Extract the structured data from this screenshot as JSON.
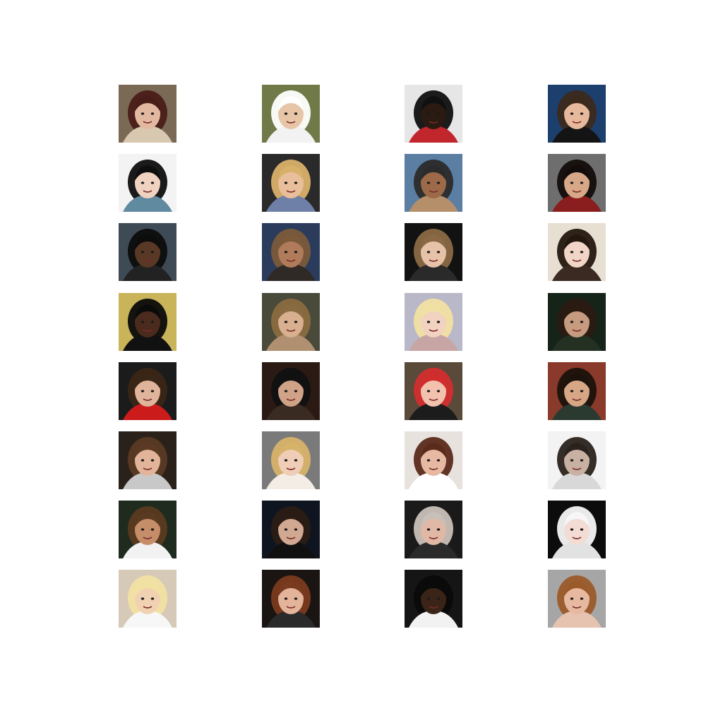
{
  "grid": {
    "rows": 8,
    "columns": 4,
    "tiles": [
      {
        "bg": "#7a6a55",
        "skin": "#e2b9a0",
        "hair": "#4a1e18",
        "top": "#d9c8b0"
      },
      {
        "bg": "#6f7a48",
        "skin": "#e7c6a8",
        "hair": "#ffffff",
        "top": "#f2f2f2"
      },
      {
        "bg": "#e6e6e6",
        "skin": "#2a1a12",
        "hair": "#101010",
        "top": "#c0262b"
      },
      {
        "bg": "#1d3f6e",
        "skin": "#e6b99c",
        "hair": "#3b2a1c",
        "top": "#141414"
      },
      {
        "bg": "#f3f3f3",
        "skin": "#f0d2c0",
        "hair": "#0e0e0e",
        "top": "#5f8aa0"
      },
      {
        "bg": "#2a2a2a",
        "skin": "#e8bf9a",
        "hair": "#d9b06a",
        "top": "#6e7fa8"
      },
      {
        "bg": "#5b7ea3",
        "skin": "#9c6a48",
        "hair": "#2b2b2b",
        "top": "#b58f6a"
      },
      {
        "bg": "#6e6e6e",
        "skin": "#d7a888",
        "hair": "#120c0a",
        "top": "#8a1d1d"
      },
      {
        "bg": "#3f4a57",
        "skin": "#5a3826",
        "hair": "#0c0c0c",
        "top": "#222222"
      },
      {
        "bg": "#2a3b5c",
        "skin": "#b07b5a",
        "hair": "#7a5a3a",
        "top": "#2f2a26"
      },
      {
        "bg": "#121212",
        "skin": "#e6c2a8",
        "hair": "#8a6a46",
        "top": "#2a2a2a"
      },
      {
        "bg": "#e8dfd3",
        "skin": "#f1d6c7",
        "hair": "#24170f",
        "top": "#3a2a22"
      },
      {
        "bg": "#c9b45a",
        "skin": "#4b2b1d",
        "hair": "#0b0b0b",
        "top": "#111111"
      },
      {
        "bg": "#4a4a3a",
        "skin": "#d8b090",
        "hair": "#8a6a40",
        "top": "#b09070"
      },
      {
        "bg": "#b8b8c8",
        "skin": "#f2d2c0",
        "hair": "#f1e0a3",
        "top": "#c7a5a5"
      },
      {
        "bg": "#152318",
        "skin": "#c79b7f",
        "hair": "#2a1a12",
        "top": "#243022"
      },
      {
        "bg": "#1b1b1b",
        "skin": "#e0b49a",
        "hair": "#3a2616",
        "top": "#cc1b1b"
      },
      {
        "bg": "#2b1a14",
        "skin": "#d0a287",
        "hair": "#111111",
        "top": "#3a2b22"
      },
      {
        "bg": "#5a4a3a",
        "skin": "#f2c2ae",
        "hair": "#d22d2d",
        "top": "#1c1c1c"
      },
      {
        "bg": "#8a3a2a",
        "skin": "#d7a685",
        "hair": "#1b120c",
        "top": "#2a3a30"
      },
      {
        "bg": "#2a221a",
        "skin": "#e2b59a",
        "hair": "#5a3a24",
        "top": "#c8c8c8"
      },
      {
        "bg": "#7a7a7a",
        "skin": "#efcdb6",
        "hair": "#d7b36a",
        "top": "#f3ede6"
      },
      {
        "bg": "#e7e2dd",
        "skin": "#e8b9a2",
        "hair": "#5a2a1a",
        "top": "#ffffff"
      },
      {
        "bg": "#f3f3f3",
        "skin": "#c8b1a2",
        "hair": "#2a221c",
        "top": "#d8d8d8"
      },
      {
        "bg": "#1f2b1f",
        "skin": "#c68d69",
        "hair": "#5a3a20",
        "top": "#f2f2f2"
      },
      {
        "bg": "#0f1520",
        "skin": "#d1a891",
        "hair": "#2a1c14",
        "top": "#101010"
      },
      {
        "bg": "#1a1a1a",
        "skin": "#e0b8a5",
        "hair": "#c8c0b8",
        "top": "#2a2a2a"
      },
      {
        "bg": "#0c0c0c",
        "skin": "#f2dcd3",
        "hair": "#f6f6f6",
        "top": "#e2e2e2"
      },
      {
        "bg": "#d7c9b8",
        "skin": "#f0d2b3",
        "hair": "#f2e2a2",
        "top": "#f7f7f7"
      },
      {
        "bg": "#1a1512",
        "skin": "#e3b39a",
        "hair": "#7a3a1e",
        "top": "#2a2a2a"
      },
      {
        "bg": "#151515",
        "skin": "#3a2418",
        "hair": "#0a0a0a",
        "top": "#f2f2f2"
      },
      {
        "bg": "#a6a6a6",
        "skin": "#e7b9a0",
        "hair": "#9a5a2a",
        "top": "#e6c2b0"
      }
    ]
  }
}
